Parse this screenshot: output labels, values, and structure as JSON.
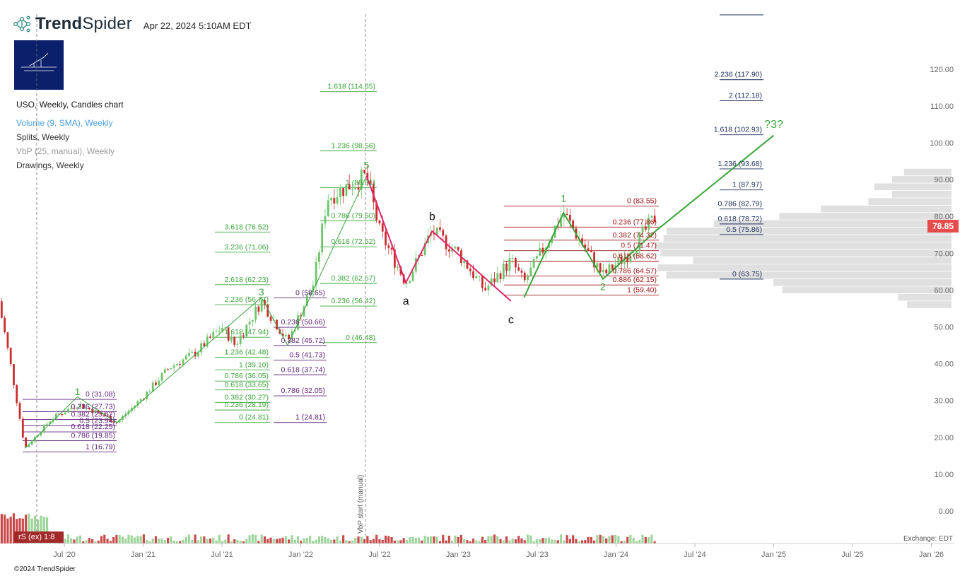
{
  "header": {
    "brand_bold": "Trend",
    "brand_light": "Spider",
    "datetime": "Apr 22, 2024 5:10AM EDT",
    "brand_icon": "network-dots-icon",
    "logo_colors": {
      "bg": "#0b1f6b",
      "fg": "#ffffff"
    }
  },
  "legend": {
    "main": "USO, Weekly, Candles chart",
    "volume": "Volume (9, SMA), Weekly",
    "splits": "Splits, Weekly",
    "vbp": "VbP (25, manual), Weekly",
    "drawings": "Drawings, Weekly"
  },
  "last_price": "78.85",
  "rs_badge": "rS (ex) 1:8",
  "exchange": "Exchange: EDT",
  "copyright": "©2024 TrendSpider",
  "vbp_label": "VbP start (manual)",
  "colors": {
    "up": "#6cc56a",
    "down": "#c92d2d",
    "green_line": "#3aa63a",
    "pink": "#e0286b",
    "purple": "#5d1f7a",
    "darkred": "#a0171a",
    "navy": "#1a2d5a",
    "vbp": "#e0e0e0",
    "price_tag": "#e74c4c"
  },
  "chart_data": {
    "type": "candlestick",
    "title": "USO, Weekly, Candles chart",
    "yticks": [
      "120.00",
      "110.00",
      "100.00",
      "90.00",
      "80.00",
      "70.00",
      "60.00",
      "50.00",
      "40.00",
      "30.00",
      "20.00",
      "10.00",
      "0.00"
    ],
    "ylim": [
      -5,
      130
    ],
    "xticks": [
      "Jul '20",
      "Jan '21",
      "Jul '21",
      "Jan '22",
      "Jul '22",
      "Jan '23",
      "Jul '23",
      "Jan '24",
      "Jul '24",
      "Jan '25",
      "Jul '25",
      "Jan '26"
    ],
    "x_range": [
      "2020-02",
      "2026-02"
    ],
    "price_path": [
      [
        "2020-02",
        57
      ],
      [
        "2020-03",
        38
      ],
      [
        "2020-04",
        17
      ],
      [
        "2020-06",
        25
      ],
      [
        "2020-08",
        29
      ],
      [
        "2020-10",
        26
      ],
      [
        "2020-11",
        24
      ],
      [
        "2021-01",
        31
      ],
      [
        "2021-03",
        39
      ],
      [
        "2021-05",
        43
      ],
      [
        "2021-07",
        50
      ],
      [
        "2021-08",
        45
      ],
      [
        "2021-10",
        57
      ],
      [
        "2021-12",
        46
      ],
      [
        "2022-02",
        62
      ],
      [
        "2022-03",
        85
      ],
      [
        "2022-06",
        91
      ],
      [
        "2022-07",
        76
      ],
      [
        "2022-09",
        62
      ],
      [
        "2022-11",
        76
      ],
      [
        "2023-01",
        70
      ],
      [
        "2023-03",
        60
      ],
      [
        "2023-05",
        68
      ],
      [
        "2023-06",
        62
      ],
      [
        "2023-09",
        81
      ],
      [
        "2023-10",
        75
      ],
      [
        "2023-12",
        64
      ],
      [
        "2024-02",
        70
      ],
      [
        "2024-04",
        80
      ]
    ],
    "wave_labels": [
      {
        "label": "1",
        "date": "2020-08",
        "price": 31.5,
        "color": "green"
      },
      {
        "label": "3",
        "date": "2021-10",
        "price": 58.5,
        "color": "green"
      },
      {
        "label": "5",
        "date": "2022-06",
        "price": 93,
        "color": "green"
      },
      {
        "label": "a",
        "date": "2022-09",
        "price": 56,
        "color": "black"
      },
      {
        "label": "b",
        "date": "2022-11",
        "price": 79,
        "color": "black"
      },
      {
        "label": "c",
        "date": "2023-05",
        "price": 51,
        "color": "black"
      },
      {
        "label": "1",
        "date": "2023-09",
        "price": 84,
        "color": "green"
      },
      {
        "label": "2",
        "date": "2023-12",
        "price": 60,
        "color": "green"
      },
      {
        "label": "?3?",
        "date": "2025-01",
        "price": 104,
        "color": "green"
      }
    ],
    "fib_sets": [
      {
        "color": "purple",
        "levels": [
          "0 (31.08)",
          "0.236 (27.73)",
          "0.382 (25.62)",
          "0.5 (23.94)",
          "0.618 (22.25)",
          "0.786 (19.85)",
          "1 (16.79)"
        ],
        "prices": [
          31.08,
          27.73,
          25.62,
          23.94,
          22.25,
          19.85,
          16.79
        ]
      },
      {
        "color": "green",
        "levels": [
          "3.618 (76.52)",
          "3.236 (71.06)",
          "2.618 (62.23)",
          "2.236 (56.77)",
          "1.618 (47.94)",
          "1.236 (42.48)",
          "1 (39.10)",
          "0.786 (36.05)",
          "0.618 (33.65)",
          "0.382 (30.27)",
          "0.236 (28.19)",
          "0 (24.81)"
        ],
        "prices": [
          76.52,
          71.06,
          62.23,
          56.77,
          47.94,
          42.48,
          39.1,
          36.05,
          33.65,
          30.27,
          28.19,
          24.81
        ]
      },
      {
        "color": "purple",
        "levels": [
          "0 (58.65)",
          "0.236 (50.66)",
          "0.382 (45.72)",
          "0.5 (41.73)",
          "0.618 (37.74)",
          "0.786 (32.05)",
          "1 (24.81)"
        ],
        "prices": [
          58.65,
          50.66,
          45.72,
          41.73,
          37.74,
          32.05,
          24.81
        ]
      },
      {
        "color": "green",
        "levels": [
          "1.618 (114.65)",
          "1.236 (98.56)",
          "1 (88.61)",
          "0.786 (79.60)",
          "0.618 (72.52)",
          "0.382 (62.57)",
          "0.236 (56.42)",
          "0 (46.48)"
        ],
        "prices": [
          114.65,
          98.56,
          88.61,
          79.6,
          72.52,
          62.57,
          56.42,
          46.48
        ]
      },
      {
        "color": "darkred",
        "levels": [
          "0 (83.55)",
          "0.236 (77.86)",
          "0.382 (74.32)",
          "0.5 (71.47)",
          "0.618 (68.62)",
          "0.786 (64.57)",
          "0.886 (62.15)",
          "1 (59.40)"
        ],
        "prices": [
          83.55,
          77.86,
          74.32,
          71.47,
          68.62,
          64.57,
          62.15,
          59.4
        ]
      },
      {
        "color": "navy",
        "levels": [
          "2.236 (117.90)",
          "2 (112.18)",
          "1.618 (102.93)",
          "1.236 (93.68)",
          "1 (87.97)",
          "0.786 (82.79)",
          "0.618 (78.72)",
          "0.5 (75.86)",
          "0 (63.75)"
        ],
        "prices": [
          117.9,
          112.18,
          102.93,
          93.68,
          87.97,
          82.79,
          78.72,
          75.86,
          63.75
        ]
      }
    ],
    "volume_by_price": {
      "prices": [
        92,
        90,
        88,
        86,
        84,
        82,
        80,
        78,
        76,
        74,
        72,
        70,
        68,
        66,
        64,
        62,
        60,
        58,
        56
      ],
      "relative_volume": [
        0.16,
        0.2,
        0.26,
        0.2,
        0.28,
        0.44,
        0.58,
        0.8,
        0.96,
        0.97,
        1.0,
        0.98,
        0.87,
        0.99,
        0.96,
        0.6,
        0.57,
        0.18,
        0.15
      ]
    },
    "projection_line": [
      [
        "2023-05",
        58
      ],
      [
        "2025-01",
        102
      ]
    ]
  }
}
